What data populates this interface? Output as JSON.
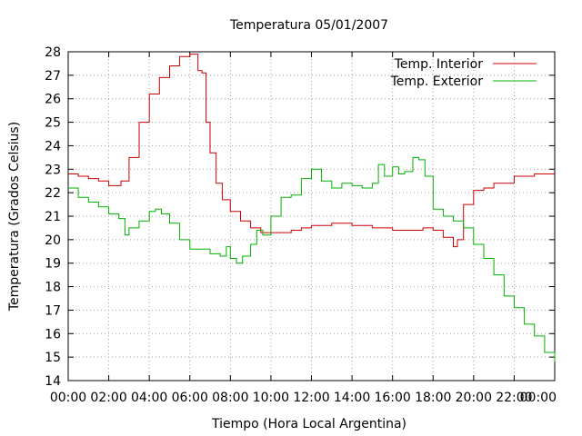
{
  "chart_data": {
    "type": "line",
    "title": "Temperatura 05/01/2007",
    "xlabel": "Tiempo (Hora Local Argentina)",
    "ylabel": "Temperatura (Grados Celsius)",
    "xlim": [
      0,
      24
    ],
    "ylim": [
      14,
      28
    ],
    "grid": true,
    "legend_position": "top-right",
    "x_ticks": [
      {
        "value": 0,
        "label": "00:00"
      },
      {
        "value": 2,
        "label": "02:00"
      },
      {
        "value": 4,
        "label": "04:00"
      },
      {
        "value": 6,
        "label": "06:00"
      },
      {
        "value": 8,
        "label": "08:00"
      },
      {
        "value": 10,
        "label": "10:00"
      },
      {
        "value": 12,
        "label": "12:00"
      },
      {
        "value": 14,
        "label": "14:00"
      },
      {
        "value": 16,
        "label": "16:00"
      },
      {
        "value": 18,
        "label": "18:00"
      },
      {
        "value": 20,
        "label": "20:00"
      },
      {
        "value": 22,
        "label": "22:00"
      },
      {
        "value": 24,
        "label": "00:00"
      }
    ],
    "y_ticks": [
      {
        "value": 14,
        "label": "14"
      },
      {
        "value": 15,
        "label": "15"
      },
      {
        "value": 16,
        "label": "16"
      },
      {
        "value": 17,
        "label": "17"
      },
      {
        "value": 18,
        "label": "18"
      },
      {
        "value": 19,
        "label": "19"
      },
      {
        "value": 20,
        "label": "20"
      },
      {
        "value": 21,
        "label": "21"
      },
      {
        "value": 22,
        "label": "22"
      },
      {
        "value": 23,
        "label": "23"
      },
      {
        "value": 24,
        "label": "24"
      },
      {
        "value": 25,
        "label": "25"
      },
      {
        "value": 26,
        "label": "26"
      },
      {
        "value": 27,
        "label": "27"
      },
      {
        "value": 28,
        "label": "28"
      }
    ],
    "series": [
      {
        "name": "Temp. Interior",
        "color": "#cc0000",
        "x": [
          0,
          0.5,
          1,
          1.5,
          2,
          2.3,
          2.6,
          3,
          3.5,
          4,
          4.5,
          5,
          5.5,
          6,
          6.2,
          6.4,
          6.6,
          6.8,
          7,
          7.3,
          7.6,
          8,
          8.5,
          9,
          9.5,
          10,
          10.5,
          11,
          11.5,
          12,
          13,
          14,
          15,
          16,
          17,
          17.5,
          18,
          18.5,
          19,
          19.2,
          19.5,
          20,
          20.5,
          21,
          22,
          23,
          24
        ],
        "y": [
          22.8,
          22.7,
          22.6,
          22.5,
          22.3,
          22.3,
          22.5,
          23.5,
          25.0,
          26.2,
          26.9,
          27.4,
          27.8,
          27.9,
          27.9,
          27.2,
          27.1,
          25.0,
          23.7,
          22.4,
          21.7,
          21.2,
          20.8,
          20.5,
          20.3,
          20.3,
          20.3,
          20.4,
          20.5,
          20.6,
          20.7,
          20.6,
          20.5,
          20.4,
          20.4,
          20.5,
          20.4,
          20.1,
          19.7,
          20.0,
          21.5,
          22.1,
          22.2,
          22.4,
          22.7,
          22.8,
          22.8
        ]
      },
      {
        "name": "Temp. Exterior",
        "color": "#00b000",
        "x": [
          0,
          0.5,
          1,
          1.5,
          2,
          2.5,
          2.8,
          3,
          3.5,
          4,
          4.3,
          4.6,
          5,
          5.5,
          6,
          6.5,
          7,
          7.5,
          7.8,
          8,
          8.3,
          8.6,
          9,
          9.3,
          9.6,
          10,
          10.5,
          11,
          11.5,
          12,
          12.5,
          13,
          13.5,
          14,
          14.5,
          15,
          15.3,
          15.6,
          16,
          16.3,
          16.6,
          17,
          17.3,
          17.6,
          18,
          18.5,
          19,
          19.5,
          20,
          20.5,
          21,
          21.5,
          22,
          22.5,
          23,
          23.5,
          24
        ],
        "y": [
          22.2,
          21.8,
          21.6,
          21.4,
          21.1,
          20.9,
          20.2,
          20.5,
          20.8,
          21.2,
          21.3,
          21.1,
          20.7,
          20.0,
          19.6,
          19.6,
          19.4,
          19.3,
          19.7,
          19.2,
          19.0,
          19.3,
          19.8,
          20.4,
          20.2,
          21.0,
          21.8,
          21.9,
          22.6,
          23.0,
          22.5,
          22.2,
          22.4,
          22.3,
          22.2,
          22.4,
          23.2,
          22.7,
          23.1,
          22.8,
          22.9,
          23.5,
          23.4,
          22.7,
          21.3,
          21.0,
          20.8,
          20.5,
          19.8,
          19.2,
          18.5,
          17.6,
          17.1,
          16.4,
          15.9,
          15.2,
          14.8
        ]
      }
    ]
  }
}
